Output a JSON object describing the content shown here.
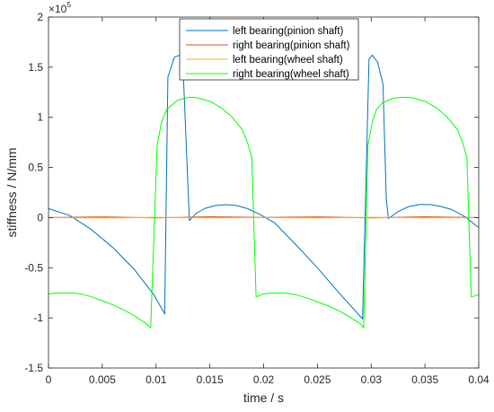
{
  "chart_data": {
    "type": "line",
    "xlabel": "time / s",
    "ylabel": "stiffness / N/mm",
    "exponent_label": "×10",
    "exponent_power": "5",
    "xlim": [
      0,
      0.04
    ],
    "ylim": [
      -150000,
      200000
    ],
    "x_ticks": [
      0,
      0.005,
      0.01,
      0.015,
      0.02,
      0.025,
      0.03,
      0.035,
      0.04
    ],
    "x_tick_labels": [
      "0",
      "0.005",
      "0.01",
      "0.015",
      "0.02",
      "0.025",
      "0.03",
      "0.035",
      "0.04"
    ],
    "y_ticks": [
      -150000,
      -100000,
      -50000,
      0,
      50000,
      100000,
      150000,
      200000
    ],
    "y_tick_labels": [
      "-1.5",
      "-1",
      "-0.5",
      "0",
      "0.5",
      "1",
      "1.5",
      "2"
    ],
    "grid": false,
    "legend_position": "top-center",
    "series": [
      {
        "name": "left bearing(pinion shaft)",
        "color": "#0072BD",
        "x": [
          0,
          0.002,
          0.004,
          0.006,
          0.008,
          0.0098,
          0.0108,
          0.0111,
          0.0117,
          0.0122,
          0.0125,
          0.0131,
          0.0137,
          0.0145,
          0.0155,
          0.0165,
          0.0175,
          0.0185,
          0.0197,
          0.021,
          0.023,
          0.025,
          0.027,
          0.0292,
          0.0298,
          0.0301,
          0.0306,
          0.0311,
          0.0314,
          0.0316,
          0.0325,
          0.0335,
          0.0345,
          0.0355,
          0.0365,
          0.0375,
          0.0387,
          0.04
        ],
        "y": [
          9000,
          2000,
          -12000,
          -30000,
          -52000,
          -77000,
          -96000,
          140000,
          160000,
          162000,
          152000,
          -3000,
          4000,
          9000,
          12000,
          13000,
          12000,
          9000,
          3000,
          -5000,
          -27000,
          -50000,
          -75000,
          -101000,
          158000,
          162000,
          155000,
          133000,
          20000,
          -1000,
          6000,
          11000,
          13000,
          13000,
          11000,
          8000,
          1000,
          -10000
        ]
      },
      {
        "name": "right bearing(pinion shaft)",
        "color": "#D95319",
        "x": [
          0,
          0.005,
          0.01,
          0.015,
          0.02,
          0.025,
          0.03,
          0.035,
          0.04
        ],
        "y": [
          0,
          700,
          -300,
          800,
          200,
          700,
          -300,
          800,
          0
        ]
      },
      {
        "name": "left bearing(wheel shaft)",
        "color": "#EDB120",
        "x": [
          0,
          0.005,
          0.01,
          0.015,
          0.02,
          0.025,
          0.03,
          0.035,
          0.04
        ],
        "y": [
          0,
          -400,
          300,
          -300,
          0,
          -400,
          300,
          -300,
          0
        ]
      },
      {
        "name": "right bearing(wheel shaft)",
        "color": "#00FF00",
        "x": [
          0,
          0.001,
          0.002,
          0.003,
          0.004,
          0.005,
          0.006,
          0.007,
          0.008,
          0.009,
          0.0095,
          0.0101,
          0.0105,
          0.011,
          0.012,
          0.013,
          0.0135,
          0.014,
          0.015,
          0.016,
          0.017,
          0.018,
          0.0185,
          0.0189,
          0.0193,
          0.02,
          0.021,
          0.022,
          0.023,
          0.024,
          0.025,
          0.026,
          0.027,
          0.028,
          0.029,
          0.0293,
          0.0297,
          0.0301,
          0.0305,
          0.031,
          0.032,
          0.033,
          0.0335,
          0.034,
          0.035,
          0.036,
          0.037,
          0.038,
          0.0385,
          0.0389,
          0.0393,
          0.04
        ],
        "y": [
          -76000,
          -75000,
          -75000,
          -76000,
          -79000,
          -83000,
          -87000,
          -92000,
          -98000,
          -105000,
          -110000,
          72000,
          95000,
          108000,
          117000,
          120000,
          120000,
          119000,
          116000,
          110000,
          101000,
          88000,
          75000,
          60000,
          -79000,
          -76000,
          -75000,
          -75000,
          -77000,
          -80000,
          -84000,
          -88000,
          -93000,
          -99000,
          -106000,
          -110000,
          72000,
          95000,
          108000,
          114000,
          119000,
          120000,
          120000,
          119000,
          116000,
          110000,
          101000,
          88000,
          75000,
          60000,
          -79000,
          -77000
        ]
      }
    ]
  }
}
